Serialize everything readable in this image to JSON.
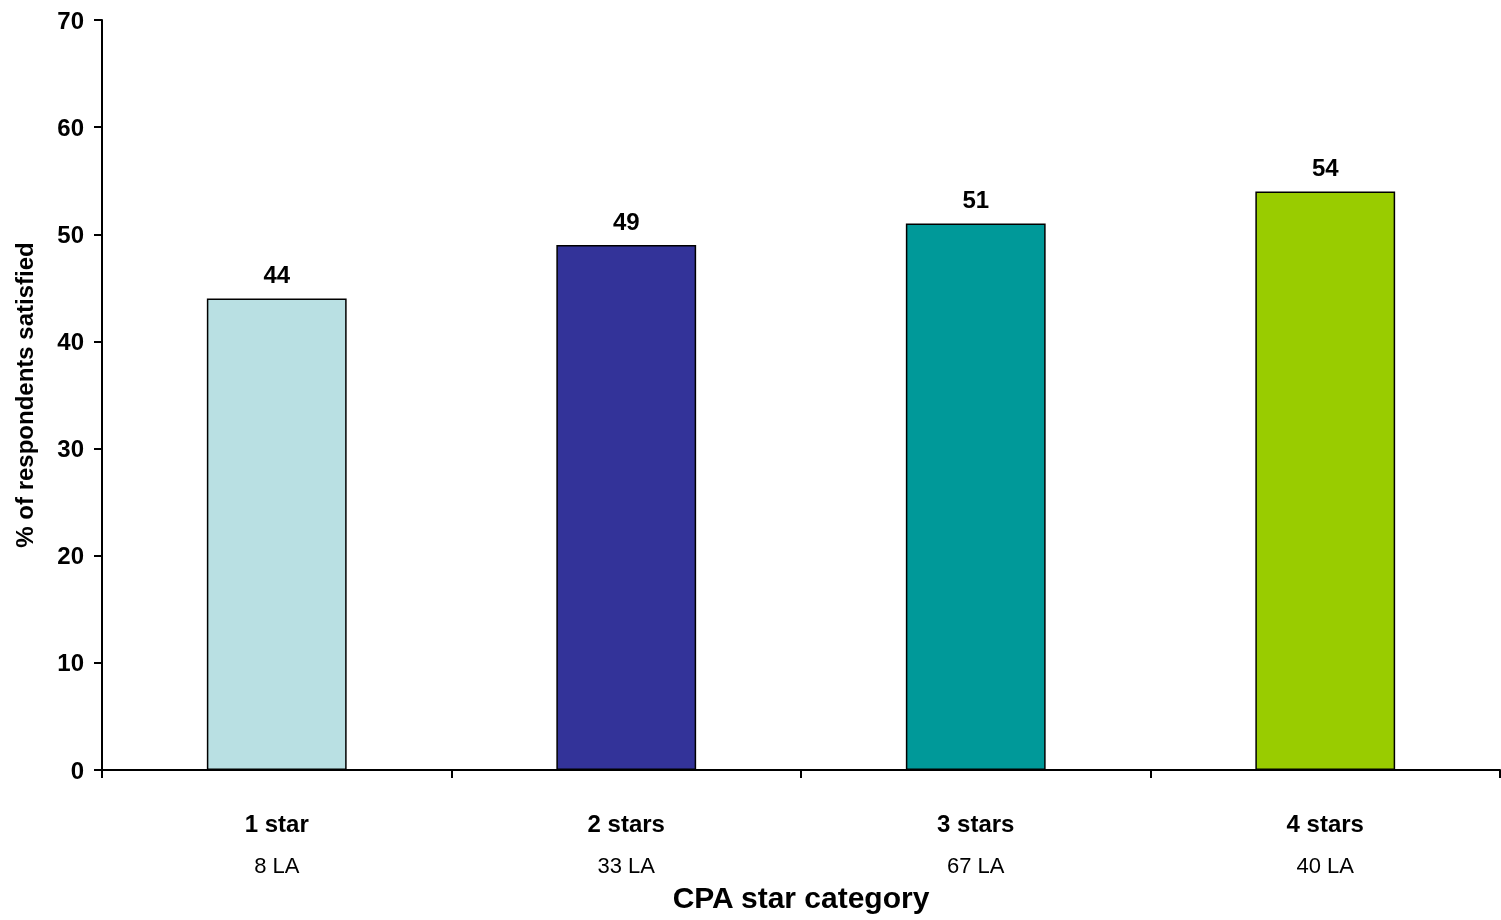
{
  "chart_data": {
    "type": "bar",
    "xlabel": "CPA star category",
    "ylabel": "% of respondents satisfied",
    "categories": [
      "1 star\n8 LA",
      "2 stars\n33 LA",
      "3 stars\n67 LA",
      "4 stars\n40 LA"
    ],
    "values": [
      44,
      49,
      51,
      54
    ],
    "colors": [
      "#b9e0e3",
      "#333399",
      "#009999",
      "#99cc00"
    ],
    "ylim": [
      0,
      70
    ],
    "yticks": [
      0,
      10,
      20,
      30,
      40,
      50,
      60,
      70
    ],
    "grid": false,
    "data_labels": true
  }
}
